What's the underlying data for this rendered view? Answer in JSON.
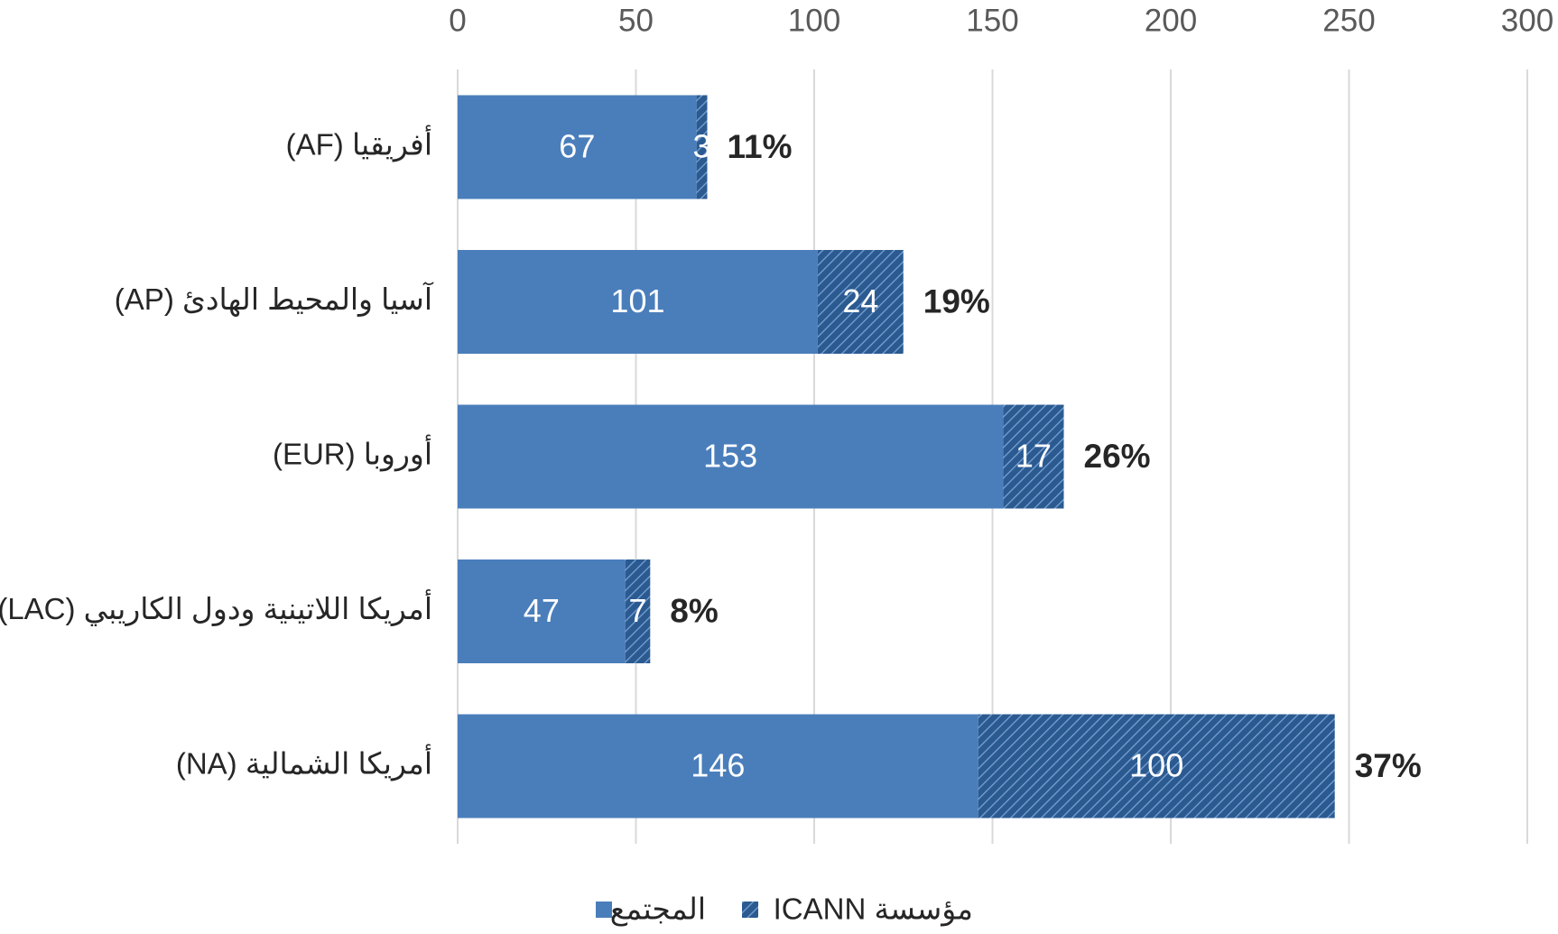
{
  "chart_data": {
    "type": "stacked_barh",
    "categories": [
      "أفريقيا (AF)",
      "آسيا والمحيط الهادئ (AP)",
      "أوروبا (EUR)",
      "أمريكا اللاتينية ودول الكاريبي (LAC)",
      "أمريكا الشمالية (NA)"
    ],
    "series": [
      {
        "name": "المجتمع",
        "color": "#4a7ebb",
        "values": [
          67,
          101,
          153,
          47,
          146
        ]
      },
      {
        "name": "مؤسسة ICANN",
        "color": "#2b5a91",
        "hatch": true,
        "values": [
          3,
          24,
          17,
          7,
          100
        ]
      }
    ],
    "annotations": [
      "11%",
      "19%",
      "26%",
      "8%",
      "37%"
    ],
    "xlim": [
      0,
      300
    ],
    "xticks": [
      0,
      50,
      100,
      150,
      200,
      250,
      300
    ],
    "grid": true,
    "legend": "bottom"
  }
}
